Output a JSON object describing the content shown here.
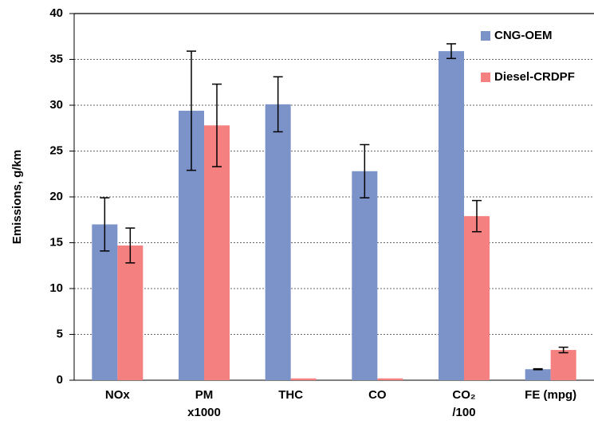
{
  "chart_data": {
    "type": "bar",
    "y_label": "Emissions, g/km",
    "categories": [
      "NOx",
      "PM\nx1000",
      "THC",
      "CO",
      "CO₂\n/100",
      "FE (mpg)"
    ],
    "series": [
      {
        "name": "CNG-OEM",
        "color": "#7b93c9",
        "values": [
          17.0,
          29.4,
          30.1,
          22.8,
          35.9,
          1.2
        ],
        "errors": [
          2.9,
          6.5,
          3.0,
          2.9,
          0.8,
          0.05
        ]
      },
      {
        "name": "Diesel-CRDPF",
        "color": "#f4817f",
        "values": [
          14.7,
          27.8,
          0.2,
          0.2,
          17.9,
          3.3
        ],
        "errors": [
          1.9,
          4.5,
          null,
          null,
          1.7,
          0.3
        ]
      }
    ],
    "ylim": [
      0,
      40
    ],
    "yticks": [
      0,
      5,
      10,
      15,
      20,
      25,
      30,
      35,
      40
    ],
    "grid": true,
    "legend": "top-right"
  }
}
